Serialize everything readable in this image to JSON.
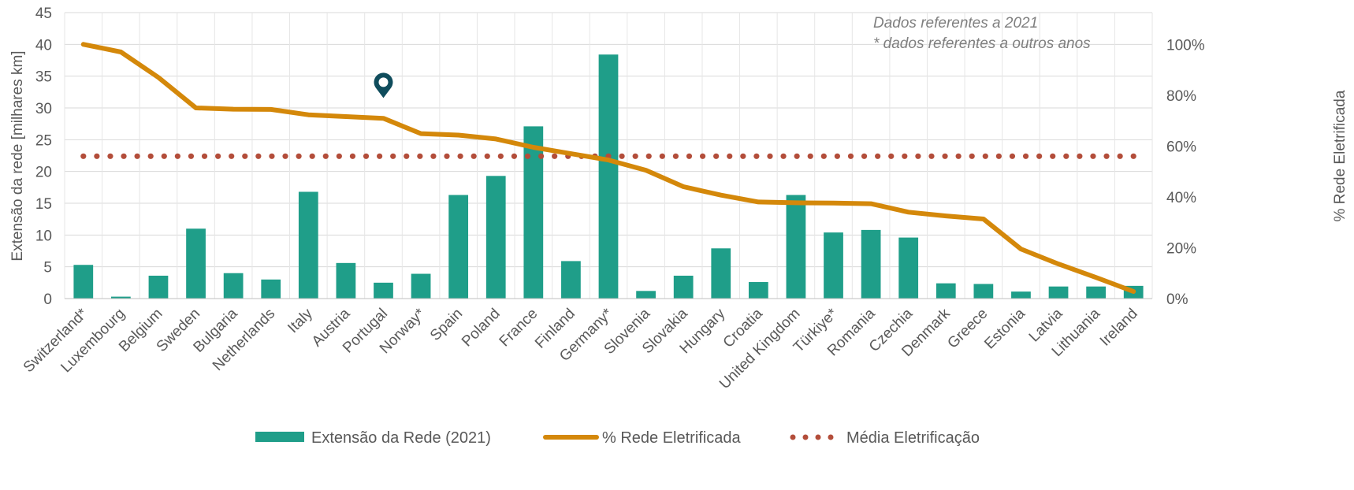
{
  "chart_data": {
    "type": "bar",
    "categories": [
      "Switzerland*",
      "Luxembourg",
      "Belgium",
      "Sweden",
      "Bulgaria",
      "Netherlands",
      "Italy",
      "Austria",
      "Portugal",
      "Norway*",
      "Spain",
      "Poland",
      "France",
      "Finland",
      "Germany*",
      "Slovenia",
      "Slovakia",
      "Hungary",
      "Croatia",
      "United Kingdom",
      "Türkiye*",
      "Romania",
      "Czechia",
      "Denmark",
      "Greece",
      "Estonia",
      "Latvia",
      "Lithuania",
      "Ireland"
    ],
    "series": [
      {
        "name": "Extensão da Rede (2021)",
        "type": "bar",
        "axis": "left",
        "color": "#1f9e89",
        "values": [
          5.3,
          0.3,
          3.6,
          11.0,
          4.0,
          3.0,
          16.8,
          5.6,
          2.5,
          3.9,
          16.3,
          19.3,
          27.1,
          5.9,
          38.4,
          1.2,
          3.6,
          7.9,
          2.6,
          16.3,
          10.4,
          10.8,
          9.6,
          2.4,
          2.3,
          1.1,
          1.9,
          1.9,
          2.0
        ]
      },
      {
        "name": "% Rede Eletrificada",
        "type": "line",
        "axis": "right",
        "color": "#d4880a",
        "values": [
          100,
          97,
          87,
          75,
          74.5,
          74.4,
          72.3,
          71.6,
          70.9,
          64.9,
          64.3,
          62.8,
          59.5,
          57,
          54.5,
          50.5,
          44,
          40.7,
          38,
          37.7,
          37.6,
          37.3,
          34,
          32.5,
          31.3,
          19.5,
          13.6,
          8.3,
          2.8
        ]
      },
      {
        "name": "Média Eletrificação",
        "type": "dotted-line",
        "axis": "right",
        "color": "#b34d3a",
        "values": [
          56,
          56,
          56,
          56,
          56,
          56,
          56,
          56,
          56,
          56,
          56,
          56,
          56,
          56,
          56,
          56,
          56,
          56,
          56,
          56,
          56,
          56,
          56,
          56,
          56,
          56,
          56,
          56,
          56
        ]
      }
    ],
    "ylabel": "Extensão da rede [milhares km]",
    "y2label": "% Rede Eletrificada",
    "ylim": [
      0,
      45
    ],
    "y2lim": [
      0,
      112.5
    ],
    "yticks": [
      "0",
      "5",
      "10",
      "15",
      "20",
      "25",
      "30",
      "35",
      "40",
      "45"
    ],
    "y2ticks": [
      "0%",
      "20%",
      "40%",
      "60%",
      "80%",
      "100%"
    ],
    "annotations": [
      "Dados referentes a 2021",
      "* dados referentes a outros anos"
    ],
    "marker": {
      "category": "Portugal",
      "value_left_axis": 33.8,
      "color": "#0f4c5c"
    },
    "grid": true,
    "legend_position": "bottom"
  }
}
